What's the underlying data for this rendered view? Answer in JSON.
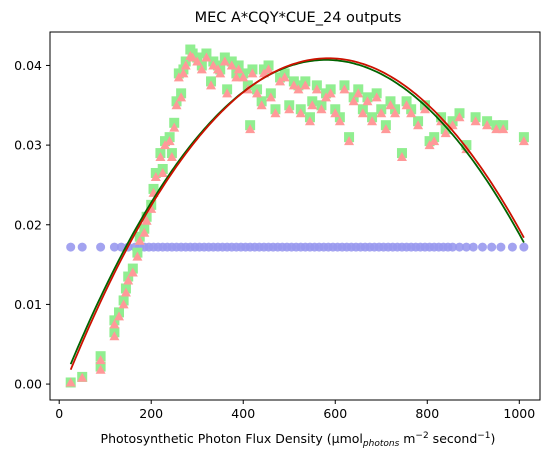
{
  "chart_data": {
    "type": "scatter",
    "title": "MEC A*CQY*CUE_24 outputs",
    "xlabel": {
      "main": "Photosynthetic Photon Flux Density (µmol",
      "sub": "photons",
      "mid": " m",
      "sup1": "−2",
      "end": " second",
      "sup2": "−1",
      "close": ")"
    },
    "ylabel": "",
    "xlim": [
      -20,
      1045
    ],
    "ylim": [
      -0.002,
      0.0442
    ],
    "xticks": [
      0,
      200,
      400,
      600,
      800,
      1000
    ],
    "yticks": [
      0.0,
      0.01,
      0.02,
      0.03,
      0.04
    ],
    "ytick_labels": [
      "0.00",
      "0.01",
      "0.02",
      "0.03",
      "0.04"
    ],
    "grid": false,
    "colors": {
      "green_squares": "#90ee90",
      "pink_triangles": "#ff9999",
      "blue_circles": "#9999ee",
      "green_fit": "#006400",
      "red_fit": "#cc1100"
    },
    "series": [
      {
        "marker": "circle",
        "color": "#9999ee",
        "constant_y": 0.0172,
        "x": [
          25,
          50,
          90,
          120,
          135,
          150,
          165,
          175,
          185,
          195,
          205,
          215,
          225,
          235,
          245,
          255,
          265,
          275,
          285,
          295,
          305,
          315,
          325,
          335,
          345,
          355,
          365,
          375,
          385,
          395,
          405,
          415,
          425,
          435,
          445,
          455,
          465,
          475,
          485,
          495,
          505,
          515,
          525,
          535,
          545,
          555,
          565,
          575,
          585,
          595,
          605,
          615,
          625,
          635,
          645,
          655,
          665,
          675,
          685,
          695,
          705,
          715,
          725,
          735,
          745,
          755,
          765,
          775,
          785,
          795,
          805,
          815,
          825,
          835,
          845,
          855,
          870,
          885,
          900,
          920,
          940,
          960,
          985,
          1010
        ]
      },
      {
        "marker": "square",
        "color": "#90ee90",
        "points": [
          [
            25,
            0.0002
          ],
          [
            50,
            0.0009
          ],
          [
            90,
            0.0022
          ],
          [
            90,
            0.0035
          ],
          [
            120,
            0.0065
          ],
          [
            120,
            0.008
          ],
          [
            130,
            0.009
          ],
          [
            140,
            0.0105
          ],
          [
            145,
            0.012
          ],
          [
            150,
            0.0135
          ],
          [
            160,
            0.0145
          ],
          [
            170,
            0.0165
          ],
          [
            175,
            0.0185
          ],
          [
            185,
            0.0195
          ],
          [
            190,
            0.021
          ],
          [
            200,
            0.0225
          ],
          [
            205,
            0.0245
          ],
          [
            210,
            0.0265
          ],
          [
            220,
            0.029
          ],
          [
            225,
            0.027
          ],
          [
            230,
            0.0305
          ],
          [
            240,
            0.031
          ],
          [
            245,
            0.029
          ],
          [
            250,
            0.0328
          ],
          [
            255,
            0.0355
          ],
          [
            260,
            0.039
          ],
          [
            265,
            0.0365
          ],
          [
            270,
            0.0395
          ],
          [
            275,
            0.0405
          ],
          [
            285,
            0.042
          ],
          [
            290,
            0.0415
          ],
          [
            300,
            0.041
          ],
          [
            310,
            0.04
          ],
          [
            320,
            0.0415
          ],
          [
            330,
            0.038
          ],
          [
            335,
            0.0405
          ],
          [
            345,
            0.04
          ],
          [
            350,
            0.0395
          ],
          [
            360,
            0.041
          ],
          [
            365,
            0.037
          ],
          [
            375,
            0.0405
          ],
          [
            385,
            0.039
          ],
          [
            390,
            0.04
          ],
          [
            400,
            0.039
          ],
          [
            410,
            0.0375
          ],
          [
            415,
            0.0325
          ],
          [
            420,
            0.0395
          ],
          [
            430,
            0.037
          ],
          [
            440,
            0.0355
          ],
          [
            445,
            0.0395
          ],
          [
            455,
            0.04
          ],
          [
            460,
            0.0365
          ],
          [
            470,
            0.0345
          ],
          [
            480,
            0.0385
          ],
          [
            490,
            0.039
          ],
          [
            500,
            0.035
          ],
          [
            510,
            0.038
          ],
          [
            520,
            0.0375
          ],
          [
            525,
            0.0345
          ],
          [
            535,
            0.038
          ],
          [
            545,
            0.0335
          ],
          [
            550,
            0.0355
          ],
          [
            560,
            0.0375
          ],
          [
            570,
            0.035
          ],
          [
            580,
            0.0365
          ],
          [
            590,
            0.037
          ],
          [
            600,
            0.0345
          ],
          [
            610,
            0.0335
          ],
          [
            620,
            0.0375
          ],
          [
            630,
            0.031
          ],
          [
            640,
            0.036
          ],
          [
            650,
            0.037
          ],
          [
            660,
            0.0345
          ],
          [
            670,
            0.036
          ],
          [
            680,
            0.0335
          ],
          [
            690,
            0.0365
          ],
          [
            700,
            0.0345
          ],
          [
            710,
            0.0325
          ],
          [
            720,
            0.0355
          ],
          [
            730,
            0.0345
          ],
          [
            745,
            0.029
          ],
          [
            755,
            0.0355
          ],
          [
            765,
            0.0345
          ],
          [
            780,
            0.033
          ],
          [
            795,
            0.035
          ],
          [
            805,
            0.0305
          ],
          [
            815,
            0.031
          ],
          [
            830,
            0.0335
          ],
          [
            840,
            0.032
          ],
          [
            855,
            0.033
          ],
          [
            870,
            0.034
          ],
          [
            885,
            0.03
          ],
          [
            905,
            0.0335
          ],
          [
            930,
            0.033
          ],
          [
            950,
            0.0325
          ],
          [
            965,
            0.0325
          ],
          [
            1010,
            0.031
          ]
        ]
      },
      {
        "marker": "triangle",
        "color": "#ff9999",
        "points": [
          [
            25,
            0.0002
          ],
          [
            50,
            0.0008
          ],
          [
            90,
            0.0018
          ],
          [
            90,
            0.003
          ],
          [
            120,
            0.006
          ],
          [
            120,
            0.0075
          ],
          [
            130,
            0.0085
          ],
          [
            140,
            0.01
          ],
          [
            145,
            0.0115
          ],
          [
            150,
            0.013
          ],
          [
            160,
            0.014
          ],
          [
            170,
            0.016
          ],
          [
            175,
            0.018
          ],
          [
            185,
            0.019
          ],
          [
            190,
            0.0205
          ],
          [
            200,
            0.022
          ],
          [
            205,
            0.024
          ],
          [
            210,
            0.026
          ],
          [
            220,
            0.0285
          ],
          [
            225,
            0.0265
          ],
          [
            230,
            0.03
          ],
          [
            240,
            0.0305
          ],
          [
            245,
            0.0285
          ],
          [
            250,
            0.0322
          ],
          [
            255,
            0.035
          ],
          [
            260,
            0.0385
          ],
          [
            265,
            0.036
          ],
          [
            270,
            0.039
          ],
          [
            275,
            0.04
          ],
          [
            285,
            0.0412
          ],
          [
            290,
            0.041
          ],
          [
            300,
            0.0405
          ],
          [
            310,
            0.0395
          ],
          [
            320,
            0.041
          ],
          [
            330,
            0.0375
          ],
          [
            335,
            0.04
          ],
          [
            345,
            0.0395
          ],
          [
            350,
            0.039
          ],
          [
            360,
            0.0405
          ],
          [
            365,
            0.0365
          ],
          [
            375,
            0.04
          ],
          [
            385,
            0.0385
          ],
          [
            390,
            0.0395
          ],
          [
            400,
            0.0385
          ],
          [
            410,
            0.037
          ],
          [
            415,
            0.032
          ],
          [
            420,
            0.039
          ],
          [
            430,
            0.0365
          ],
          [
            440,
            0.035
          ],
          [
            445,
            0.039
          ],
          [
            455,
            0.0395
          ],
          [
            460,
            0.036
          ],
          [
            470,
            0.034
          ],
          [
            480,
            0.038
          ],
          [
            490,
            0.0385
          ],
          [
            500,
            0.0345
          ],
          [
            510,
            0.0375
          ],
          [
            520,
            0.037
          ],
          [
            525,
            0.034
          ],
          [
            535,
            0.0375
          ],
          [
            545,
            0.033
          ],
          [
            550,
            0.035
          ],
          [
            560,
            0.037
          ],
          [
            570,
            0.0345
          ],
          [
            580,
            0.036
          ],
          [
            590,
            0.0365
          ],
          [
            600,
            0.034
          ],
          [
            610,
            0.033
          ],
          [
            620,
            0.037
          ],
          [
            630,
            0.0305
          ],
          [
            640,
            0.0355
          ],
          [
            650,
            0.0365
          ],
          [
            660,
            0.034
          ],
          [
            670,
            0.0355
          ],
          [
            680,
            0.033
          ],
          [
            690,
            0.036
          ],
          [
            700,
            0.034
          ],
          [
            710,
            0.032
          ],
          [
            720,
            0.035
          ],
          [
            730,
            0.034
          ],
          [
            745,
            0.0285
          ],
          [
            755,
            0.035
          ],
          [
            765,
            0.034
          ],
          [
            780,
            0.0325
          ],
          [
            795,
            0.0345
          ],
          [
            805,
            0.03
          ],
          [
            815,
            0.0305
          ],
          [
            830,
            0.033
          ],
          [
            840,
            0.0315
          ],
          [
            855,
            0.0325
          ],
          [
            870,
            0.0335
          ],
          [
            885,
            0.0295
          ],
          [
            905,
            0.033
          ],
          [
            930,
            0.0325
          ],
          [
            950,
            0.032
          ],
          [
            965,
            0.032
          ],
          [
            1010,
            0.0305
          ]
        ]
      },
      {
        "type": "line",
        "color": "#006400",
        "quadratic": {
          "vertex_x": 580,
          "vertex_y": 0.0407,
          "at_x": 25,
          "value_at_x": 0.0025
        }
      },
      {
        "type": "line",
        "color": "#cc1100",
        "quadratic": {
          "vertex_x": 585,
          "vertex_y": 0.0409,
          "at_x": 25,
          "value_at_x": 0.0018
        }
      }
    ]
  }
}
